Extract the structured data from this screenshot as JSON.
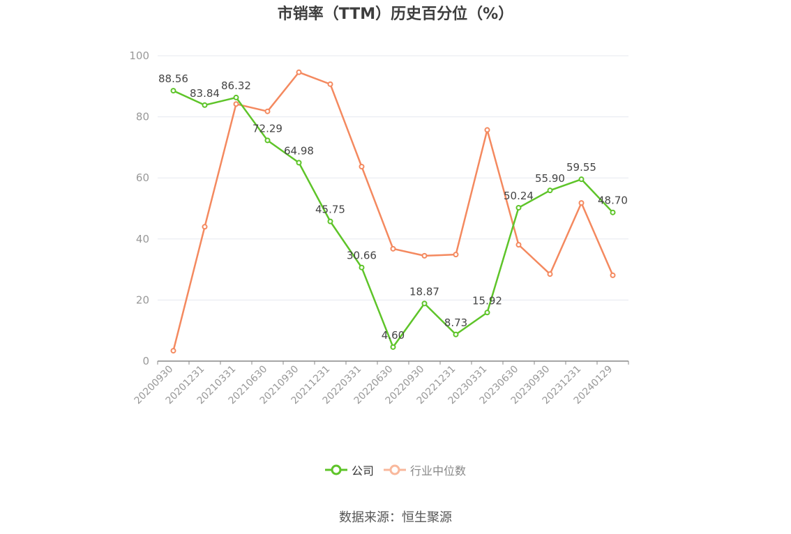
{
  "chart_data": {
    "type": "line",
    "title": "市销率（TTM）历史百分位（%）",
    "categories": [
      "20200930",
      "20201231",
      "20210331",
      "20210630",
      "20210930",
      "20211231",
      "20220331",
      "20220630",
      "20220930",
      "20221231",
      "20230331",
      "20230630",
      "20230930",
      "20231231",
      "20240129"
    ],
    "series": [
      {
        "name": "公司",
        "color": "#5ec429",
        "values": [
          88.56,
          83.84,
          86.32,
          72.29,
          64.98,
          45.75,
          30.66,
          4.6,
          18.87,
          8.73,
          15.92,
          50.24,
          55.9,
          59.55,
          48.7
        ],
        "labels": [
          "88.56",
          "83.84",
          "86.32",
          "72.29",
          "64.98",
          "45.75",
          "30.66",
          "4.60",
          "18.87",
          "8.73",
          "15.92",
          "50.24",
          "55.90",
          "59.55",
          "48.70"
        ]
      },
      {
        "name": "行业中位数",
        "color": "#f4895f",
        "legend_color": "#f9b89c",
        "values": [
          3.4,
          44.0,
          84.2,
          81.8,
          94.6,
          90.7,
          63.7,
          36.8,
          34.5,
          34.9,
          75.7,
          38.1,
          28.5,
          51.8,
          28.1
        ]
      }
    ],
    "yticks": [
      "0",
      "20",
      "40",
      "60",
      "80",
      "100"
    ],
    "ylim": [
      0,
      100
    ],
    "grid": true,
    "legend_position": "bottom-center"
  },
  "source_text": "数据来源：恒生聚源",
  "colors": {
    "title": "#3d3d3d",
    "grid": "#e5e8ef",
    "axis": "#888888",
    "tick_text": "#999999",
    "label_text": "#444444"
  }
}
